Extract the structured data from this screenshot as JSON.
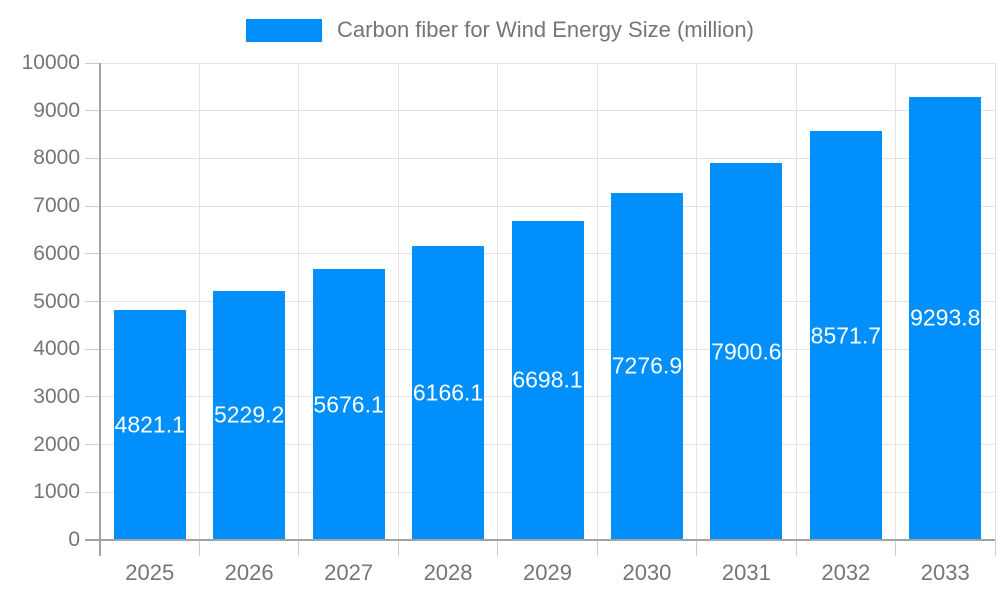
{
  "chart_data": {
    "type": "bar",
    "title": "Carbon fiber for Wind Energy Size (million)",
    "legend_position": "top",
    "categories": [
      "2025",
      "2026",
      "2027",
      "2028",
      "2029",
      "2030",
      "2031",
      "2032",
      "2033"
    ],
    "values": [
      4821.1,
      5229.2,
      5676.1,
      6166.1,
      6698.1,
      7276.9,
      7900.6,
      8571.7,
      9293.8
    ],
    "value_labels": [
      "4821.1",
      "5229.2",
      "5676.1",
      "6166.1",
      "6698.1",
      "7276.9",
      "7900.6",
      "8571.7",
      "9293.8"
    ],
    "xlabel": "",
    "ylabel": "",
    "ylim": [
      0,
      10000
    ],
    "yticks": [
      0,
      1000,
      2000,
      3000,
      4000,
      5000,
      6000,
      7000,
      8000,
      9000,
      10000
    ],
    "grid": true,
    "colors": {
      "bar": "#008ffb",
      "value_label": "#ffffff",
      "axis_text": "#757575",
      "grid_line": "#e3e3e3",
      "axis_line": "#a3a3a3",
      "tick_line": "#cccccc"
    }
  }
}
